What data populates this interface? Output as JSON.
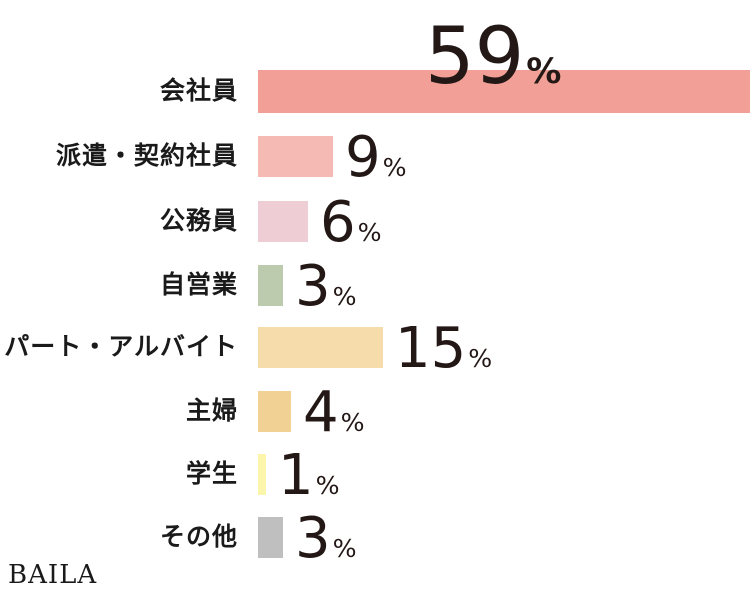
{
  "brand": "BAILA",
  "chart_data": {
    "type": "bar",
    "orientation": "horizontal",
    "categories": [
      "会社員",
      "派遣・契約社員",
      "公務員",
      "自営業",
      "パート・アルバイト",
      "主婦",
      "学生",
      "その他"
    ],
    "values": [
      59,
      9,
      6,
      3,
      15,
      4,
      1,
      3
    ],
    "unit": "%",
    "colors": [
      "#f2a097",
      "#f4bab3",
      "#efcdd4",
      "#bccbad",
      "#f5dcaa",
      "#f1d194",
      "#fcf6ad",
      "#bfbfbf"
    ],
    "xlim": [
      0,
      59
    ],
    "grid": false,
    "legend": "none"
  }
}
